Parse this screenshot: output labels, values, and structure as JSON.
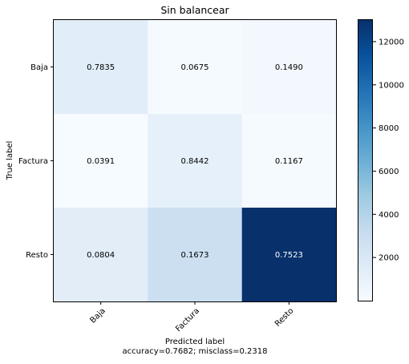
{
  "chart_data": {
    "type": "heatmap",
    "title": "Sin balancear",
    "ylabel": "True label",
    "xlabel": "Predicted label",
    "xlabel_note": "accuracy=0.7682; misclass=0.2318",
    "row_labels": [
      "Baja",
      "Factura",
      "Resto"
    ],
    "col_labels": [
      "Baja",
      "Factura",
      "Resto"
    ],
    "cell_labels": [
      [
        "0.7835",
        "0.0675",
        "0.1490"
      ],
      [
        "0.0391",
        "0.8442",
        "0.1167"
      ],
      [
        "0.0804",
        "0.1673",
        "0.7523"
      ]
    ],
    "estimated_counts": [
      [
        1400,
        120,
        266
      ],
      [
        50,
        1080,
        149
      ],
      [
        1390,
        2890,
        13000
      ]
    ],
    "colorbar": {
      "colormap": "Blues",
      "range": [
        0,
        13000
      ],
      "ticks": [
        2000,
        4000,
        6000,
        8000,
        10000,
        12000
      ],
      "tick_labels": [
        "2000",
        "4000",
        "6000",
        "8000",
        "10000",
        "12000"
      ]
    },
    "text_colors": {
      "on_light": "#000000",
      "on_dark": "#ffffff"
    },
    "colors": {
      "low": "#f7fbff",
      "high": "#08306b"
    }
  }
}
